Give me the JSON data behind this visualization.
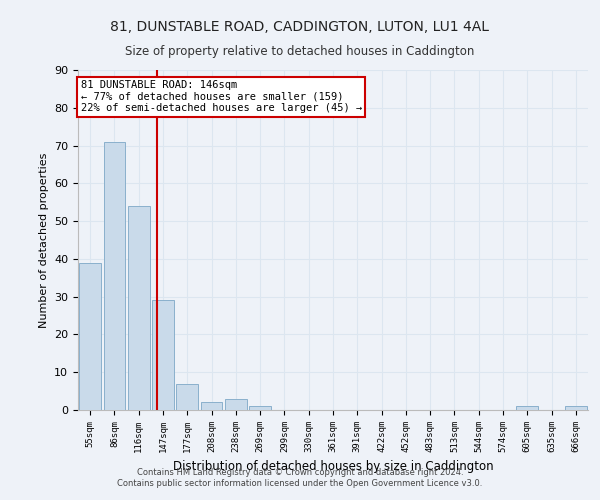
{
  "title1": "81, DUNSTABLE ROAD, CADDINGTON, LUTON, LU1 4AL",
  "title2": "Size of property relative to detached houses in Caddington",
  "xlabel": "Distribution of detached houses by size in Caddington",
  "ylabel": "Number of detached properties",
  "footnote1": "Contains HM Land Registry data © Crown copyright and database right 2024.",
  "footnote2": "Contains public sector information licensed under the Open Government Licence v3.0.",
  "bin_labels": [
    "55sqm",
    "86sqm",
    "116sqm",
    "147sqm",
    "177sqm",
    "208sqm",
    "238sqm",
    "269sqm",
    "299sqm",
    "330sqm",
    "361sqm",
    "391sqm",
    "422sqm",
    "452sqm",
    "483sqm",
    "513sqm",
    "544sqm",
    "574sqm",
    "605sqm",
    "635sqm",
    "666sqm"
  ],
  "bar_values": [
    39,
    71,
    54,
    29,
    7,
    2,
    3,
    1,
    0,
    0,
    0,
    0,
    0,
    0,
    0,
    0,
    0,
    0,
    1,
    0,
    1
  ],
  "bar_color": "#c9daea",
  "bar_edge_color": "#8ab0cc",
  "grid_color": "#dce6f0",
  "background_color": "#eef2f8",
  "red_line_x": 2.77,
  "annotation_text": "81 DUNSTABLE ROAD: 146sqm\n← 77% of detached houses are smaller (159)\n22% of semi-detached houses are larger (45) →",
  "annotation_box_color": "#ffffff",
  "annotation_border_color": "#cc0000",
  "ylim": [
    0,
    90
  ],
  "yticks": [
    0,
    10,
    20,
    30,
    40,
    50,
    60,
    70,
    80,
    90
  ]
}
